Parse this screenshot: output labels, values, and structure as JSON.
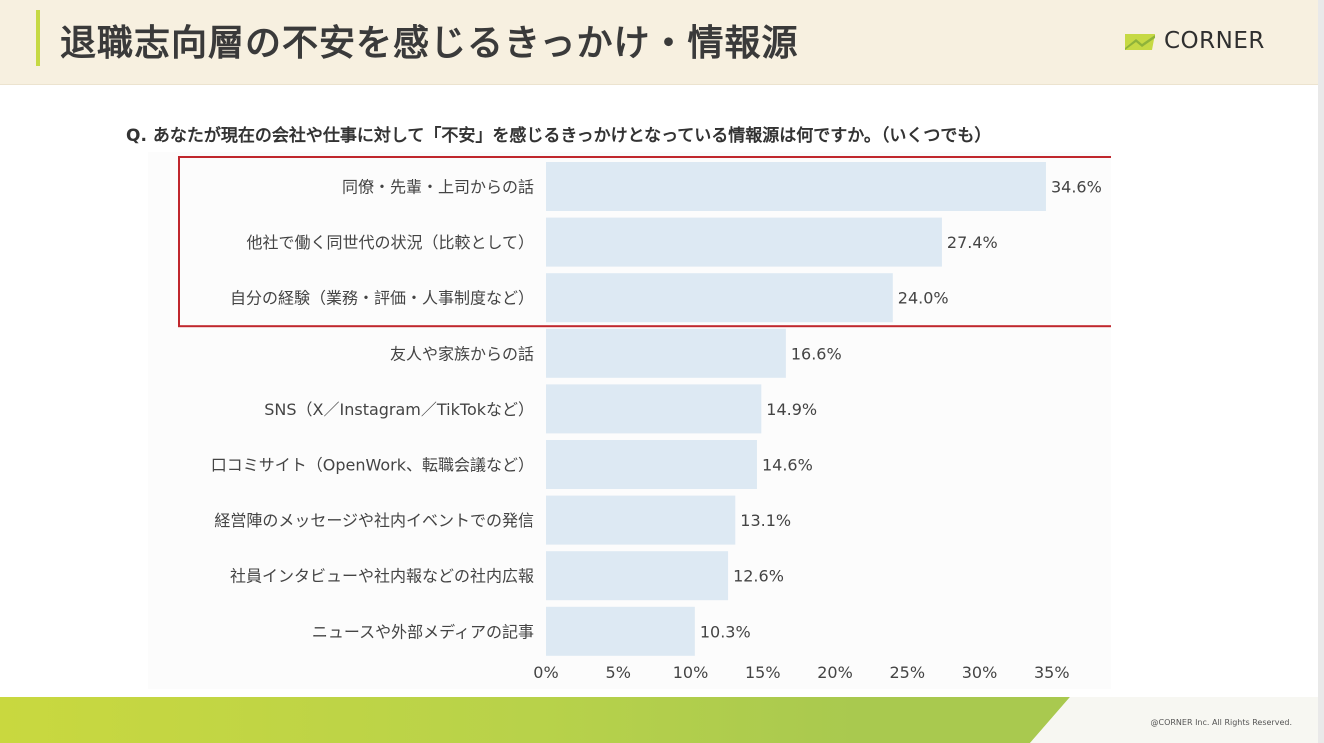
{
  "header": {
    "title": "退職志向層の不安を感じるきっかけ・情報源",
    "logo_text": "CORNER"
  },
  "question": "Q. あなたが現在の会社や仕事に対して「不安」を感じるきっかけとなっている情報源は何ですか。（いくつでも）",
  "footer": {
    "copyright": "@CORNER Inc. All Rights Reserved."
  },
  "colors": {
    "bar": "#dde9f3",
    "highlight_box": "#c0272d",
    "header_bg": "#f7f0e0",
    "accent": "#c6d944"
  },
  "chart_data": {
    "type": "bar",
    "orientation": "horizontal",
    "title": "",
    "xlabel": "",
    "ylabel": "",
    "categories": [
      "同僚・先輩・上司からの話",
      "他社で働く同世代の状況（比較として）",
      "自分の経験（業務・評価・人事制度など）",
      "友人や家族からの話",
      "SNS（X／Instagram／TikTokなど）",
      "口コミサイト（OpenWork、転職会議など）",
      "経営陣のメッセージや社内イベントでの発信",
      "社員インタビューや社内報などの社内広報",
      "ニュースや外部メディアの記事"
    ],
    "values": [
      34.6,
      27.4,
      24.0,
      16.6,
      14.9,
      14.6,
      13.1,
      12.6,
      10.3
    ],
    "value_labels": [
      "34.6%",
      "27.4%",
      "24.0%",
      "16.6%",
      "14.9%",
      "14.6%",
      "13.1%",
      "12.6%",
      "10.3%"
    ],
    "xlim": [
      0,
      35
    ],
    "xticks": [
      "0%",
      "5%",
      "10%",
      "15%",
      "20%",
      "25%",
      "30%",
      "35%"
    ],
    "grid": false,
    "highlighted_categories": [
      0,
      1,
      2
    ]
  }
}
